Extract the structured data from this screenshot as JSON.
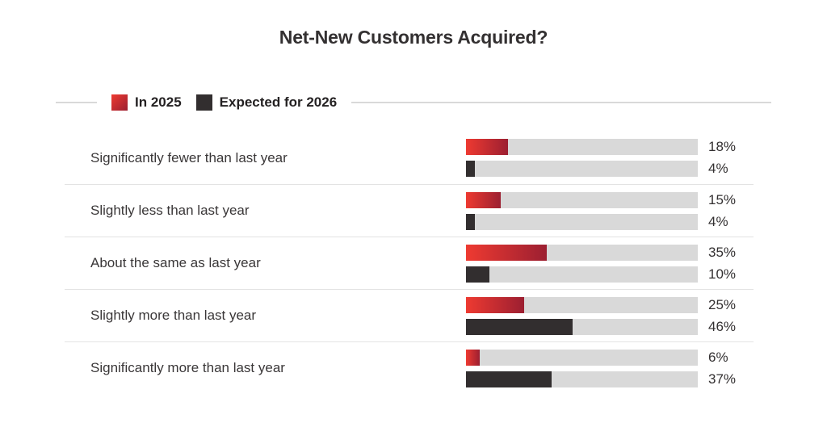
{
  "chart_data": {
    "type": "bar",
    "orientation": "horizontal",
    "title": "Net-New Customers Acquired?",
    "categories": [
      "Significantly fewer than last year",
      "Slightly less than last year",
      "About the same as last year",
      "Slightly more than last year",
      "Significantly more than last year"
    ],
    "series": [
      {
        "name": "In 2025",
        "values": [
          18,
          15,
          35,
          25,
          6
        ]
      },
      {
        "name": "Expected for 2026",
        "values": [
          4,
          4,
          10,
          46,
          37
        ]
      }
    ],
    "value_suffix": "%",
    "xlim": [
      0,
      100
    ],
    "legend_position": "top-left",
    "grid": false
  },
  "colors": {
    "series_in_2025_gradient_start": "#ee3a31",
    "series_in_2025_gradient_end": "#9c1f31",
    "series_expected_2026": "#322e2f",
    "bar_track": "#d9d9d9",
    "row_divider": "#e3e3e3",
    "text": "#3a3738"
  }
}
